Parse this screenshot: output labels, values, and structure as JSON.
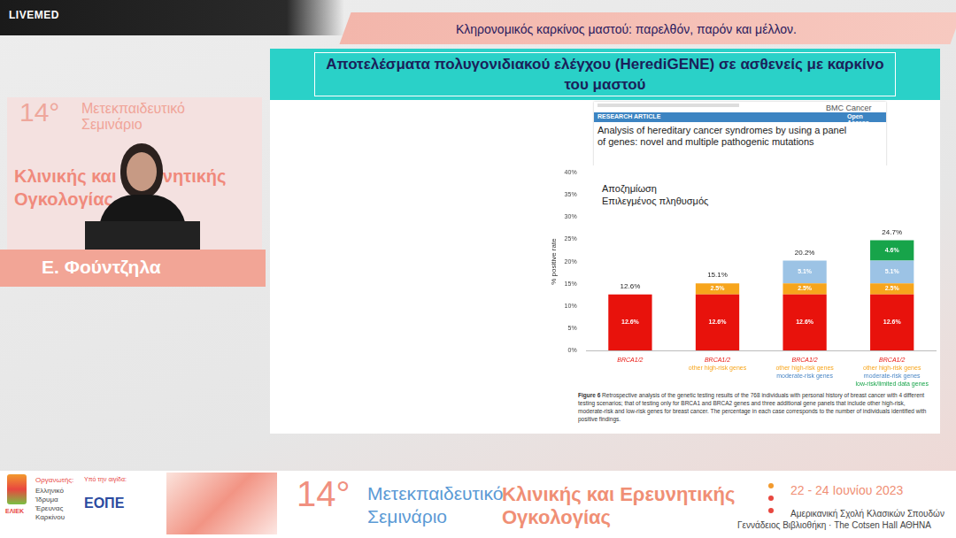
{
  "broadcast": {
    "logo": "LIVEMED",
    "header": "Κληρονομικός καρκίνος μαστού: παρελθόν, παρόν και μέλλον."
  },
  "speaker": {
    "name": "Ε. Φούντζηλα",
    "backdrop": [
      "14°",
      "Μετεκπαιδευτικό",
      "Σεμινάριο",
      "Κλινικής και Ερευνητικής",
      "Ογκολογίας"
    ]
  },
  "slide": {
    "title": "Αποτελέσματα πολυγονιδιακού ελέγχου (HerediGENE) σε ασθενείς με καρκίνο του μαστού",
    "paper": {
      "journal": "BMC Cancer",
      "section": "RESEARCH ARTICLE",
      "access": "Open Access",
      "title": "Analysis of hereditary cancer syndromes by using a panel of genes: novel and multiple pathogenic mutations"
    },
    "caption_label": "Figure 6",
    "caption": "Retrospective analysis of the genetic testing results of the 768 individuals with personal history of breast cancer with 4 different testing scenarios; that of testing only for BRCA1 and BRCA2 genes and three additional gene panels that include other high-risk, moderate-risk and low-risk genes for breast cancer. The percentage in each case corresponds to the number of individuals identified with positive findings."
  },
  "footer": {
    "organizer_label": "Οργανωτής:",
    "organizer_short": "ΕΛΙΕΚ",
    "organizer": [
      "Ελληνικό",
      "Ίδρυμα",
      "Έρευνας",
      "Καρκίνου"
    ],
    "auspices_label": "Υπό την αιγίδα:",
    "auspices": "ΕΟΠΕ",
    "edition": "14°",
    "event": [
      "Μετεκπαιδευτικό",
      "Σεμινάριο"
    ],
    "event_title": [
      "Κλινικής και Ερευνητικής",
      "Ογκολογίας"
    ],
    "dates": "22 - 24 Ιουνίου 2023",
    "venue": [
      "Αμερικανική Σχολή Κλασικών Σπουδών",
      "Γεννάδειος Βιβλιοθήκη · The Cotsen Hall ΑΘΗΝΑ"
    ]
  },
  "chart_data": {
    "type": "bar",
    "stacked": true,
    "annotations": [
      "Αποζημίωση",
      "Επιλεγμένος πληθυσμός"
    ],
    "y_label": "% positive rate",
    "categories": [
      [
        "BRCA1/2"
      ],
      [
        "BRCA1/2",
        "other high-risk genes"
      ],
      [
        "BRCA1/2",
        "other high-risk genes",
        "moderate-risk genes"
      ],
      [
        "BRCA1/2",
        "other high-risk genes",
        "moderate-risk genes",
        "low-risk/limited data genes"
      ]
    ],
    "series": [
      {
        "name": "BRCA1/2",
        "color": "#e8120c",
        "values": [
          12.6,
          12.6,
          12.6,
          12.6
        ],
        "value_labels": [
          "12.6%",
          "12.6%",
          "12.6%",
          "12.6%"
        ]
      },
      {
        "name": "other high-risk genes",
        "color": "#f7a51c",
        "values": [
          null,
          2.5,
          2.5,
          2.5
        ],
        "value_labels": [
          null,
          "2.5%",
          "2.5%",
          "2.5%"
        ]
      },
      {
        "name": "moderate-risk genes",
        "color": "#9cc3e5",
        "values": [
          null,
          null,
          5.1,
          5.1
        ],
        "value_labels": [
          null,
          null,
          "5.1%",
          "5.1%"
        ]
      },
      {
        "name": "low-risk/limited data genes",
        "color": "#17a44a",
        "values": [
          null,
          null,
          null,
          4.6
        ],
        "value_labels": [
          null,
          null,
          null,
          "4.6%"
        ]
      }
    ],
    "totals": [
      12.6,
      15.1,
      20.2,
      24.7
    ],
    "total_labels": [
      "12.6%",
      "15.1%",
      "20.2%",
      "24.7%"
    ],
    "ylim": [
      0,
      40
    ],
    "yticks": [
      {
        "value": 0,
        "label": "0%"
      },
      {
        "value": 5,
        "label": "5%"
      },
      {
        "value": 10,
        "label": "10%"
      },
      {
        "value": 15,
        "label": "15%"
      },
      {
        "value": 20,
        "label": "20%"
      },
      {
        "value": 25,
        "label": "25%"
      },
      {
        "value": 30,
        "label": "30%"
      },
      {
        "value": 35,
        "label": "35%"
      },
      {
        "value": 40,
        "label": "40%"
      }
    ],
    "grid": false,
    "data_labels": true
  }
}
